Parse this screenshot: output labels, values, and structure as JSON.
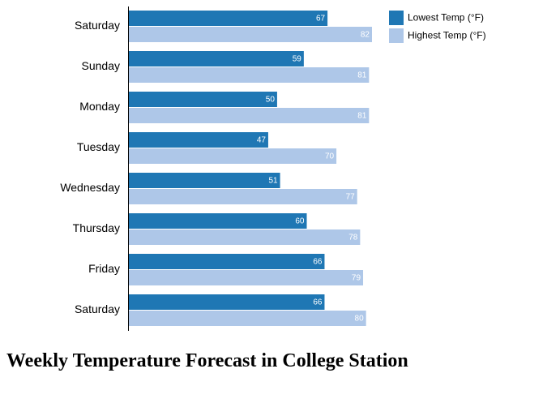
{
  "chart_data": {
    "type": "bar",
    "orientation": "horizontal",
    "title": "Weekly Temperature Forecast in College Station",
    "categories": [
      "Saturday",
      "Sunday",
      "Monday",
      "Tuesday",
      "Wednesday",
      "Thursday",
      "Friday",
      "Saturday"
    ],
    "series": [
      {
        "name": "Lowest Temp (°F)",
        "color": "#1f77b4",
        "values": [
          67,
          59,
          50,
          47,
          51,
          60,
          66,
          66
        ]
      },
      {
        "name": "Highest Temp (°F)",
        "color": "#aec7e8",
        "values": [
          82,
          81,
          81,
          70,
          77,
          78,
          79,
          80
        ]
      }
    ],
    "xlim": [
      0,
      82
    ],
    "grid": false,
    "x_axis_visible": false,
    "data_labels": true,
    "legend_position": "top-right"
  }
}
